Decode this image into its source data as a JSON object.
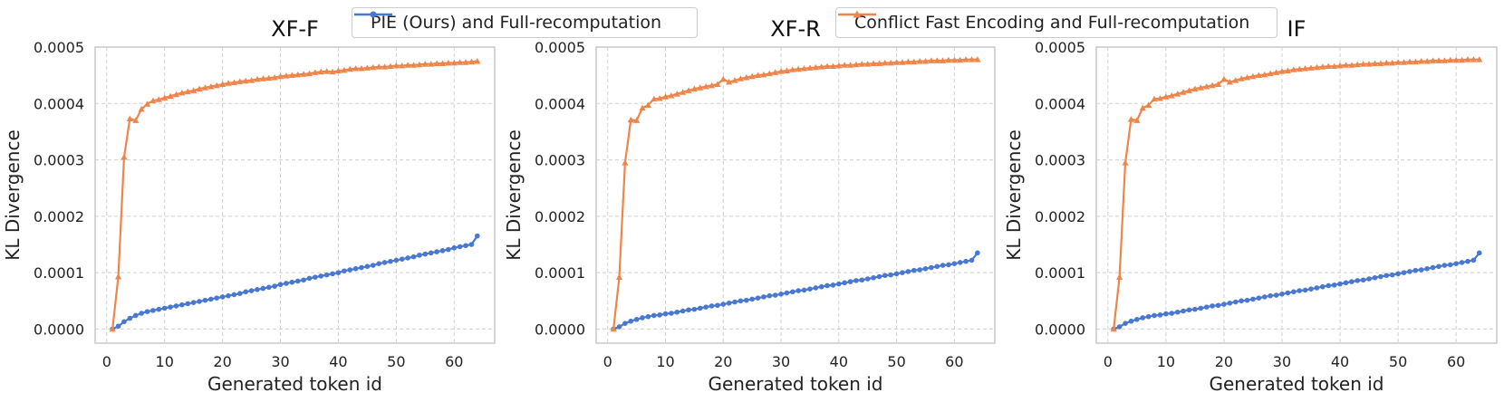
{
  "legend": [
    {
      "label": "PIE (Ours) and Full-recomputation",
      "color": "#4878d0",
      "marker": "circle"
    },
    {
      "label": "Conflict Fast Encoding and Full-recomputation",
      "color": "#ee854a",
      "marker": "triangle"
    }
  ],
  "chart_data": [
    {
      "type": "line",
      "title": "XF-F",
      "xlabel": "Generated token id",
      "ylabel": "KL Divergence",
      "xlim": [
        -2,
        67
      ],
      "ylim": [
        -2.5e-05,
        0.0005
      ],
      "xticks": [
        "0",
        "10",
        "20",
        "30",
        "40",
        "50",
        "60"
      ],
      "yticks": [
        "0.0000",
        "0.0001",
        "0.0002",
        "0.0003",
        "0.0004",
        "0.0005"
      ],
      "grid": true,
      "x_range": [
        1,
        64
      ],
      "series": [
        {
          "name": "PIE (Ours) and Full-recomputation",
          "color": "#4878d0",
          "marker": "circle",
          "values": [
            0,
            5e-06,
            1.3e-05,
            1.9e-05,
            2.4e-05,
            2.8e-05,
            3.1e-05,
            3.3e-05,
            3.5e-05,
            3.7e-05,
            3.9e-05,
            4.1e-05,
            4.3e-05,
            4.5e-05,
            4.7e-05,
            4.9e-05,
            5.1e-05,
            5.3e-05,
            5.5e-05,
            5.7e-05,
            5.9e-05,
            6.1e-05,
            6.3e-05,
            6.6e-05,
            6.8e-05,
            7e-05,
            7.2e-05,
            7.4e-05,
            7.6e-05,
            7.9e-05,
            8.1e-05,
            8.3e-05,
            8.5e-05,
            8.7e-05,
            9e-05,
            9.2e-05,
            9.4e-05,
            9.6e-05,
            9.8e-05,
            0.0001,
            0.000103,
            0.000105,
            0.000107,
            0.000109,
            0.000111,
            0.000113,
            0.000116,
            0.000118,
            0.00012,
            0.000122,
            0.000124,
            0.000126,
            0.000128,
            0.000131,
            0.000133,
            0.000135,
            0.000137,
            0.000139,
            0.000141,
            0.000144,
            0.000146,
            0.000148,
            0.00015,
            0.000165
          ]
        },
        {
          "name": "Conflict Fast Encoding and Full-recomputation",
          "color": "#ee854a",
          "marker": "triangle",
          "values": [
            0,
            9.3e-05,
            0.000305,
            0.000373,
            0.00037,
            0.00039,
            0.000399,
            0.000405,
            0.000407,
            0.00041,
            0.000413,
            0.000416,
            0.000419,
            0.000421,
            0.000423,
            0.000426,
            0.000428,
            0.00043,
            0.000432,
            0.000434,
            0.000436,
            0.000437,
            0.000439,
            0.00044,
            0.000441,
            0.000443,
            0.000444,
            0.000445,
            0.000446,
            0.000448,
            0.000449,
            0.00045,
            0.000451,
            0.000452,
            0.000453,
            0.000455,
            0.000456,
            0.000457,
            0.000456,
            0.000458,
            0.000459,
            0.000461,
            0.000462,
            0.000462,
            0.000463,
            0.000464,
            0.000465,
            0.000465,
            0.000466,
            0.000467,
            0.000467,
            0.000468,
            0.000468,
            0.000469,
            0.00047,
            0.00047,
            0.000471,
            0.000471,
            0.000472,
            0.000472,
            0.000473,
            0.000473,
            0.000474,
            0.000475
          ]
        }
      ]
    },
    {
      "type": "line",
      "title": "XF-R",
      "xlabel": "Generated token id",
      "ylabel": "KL Divergence",
      "xlim": [
        -2,
        67
      ],
      "ylim": [
        -2.5e-05,
        0.0005
      ],
      "xticks": [
        "0",
        "10",
        "20",
        "30",
        "40",
        "50",
        "60"
      ],
      "yticks": [
        "0.0000",
        "0.0001",
        "0.0002",
        "0.0003",
        "0.0004",
        "0.0005"
      ],
      "grid": true,
      "x_range": [
        1,
        64
      ],
      "series": [
        {
          "name": "PIE (Ours) and Full-recomputation",
          "color": "#4878d0",
          "marker": "circle",
          "values": [
            0,
            4e-06,
            1e-05,
            1.4e-05,
            1.7e-05,
            2e-05,
            2.2e-05,
            2.4e-05,
            2.5e-05,
            2.7e-05,
            2.8e-05,
            3e-05,
            3.2e-05,
            3.4e-05,
            3.5e-05,
            3.7e-05,
            3.9e-05,
            4.1e-05,
            4.2e-05,
            4.4e-05,
            4.6e-05,
            4.8e-05,
            5e-05,
            5.1e-05,
            5.3e-05,
            5.5e-05,
            5.7e-05,
            5.9e-05,
            6e-05,
            6.2e-05,
            6.4e-05,
            6.6e-05,
            6.8e-05,
            6.9e-05,
            7.1e-05,
            7.3e-05,
            7.5e-05,
            7.7e-05,
            7.8e-05,
            8e-05,
            8.2e-05,
            8.4e-05,
            8.6e-05,
            8.7e-05,
            8.9e-05,
            9.1e-05,
            9.3e-05,
            9.5e-05,
            9.6e-05,
            9.8e-05,
            0.0001,
            0.000102,
            0.000104,
            0.000105,
            0.000107,
            0.000109,
            0.000111,
            0.000113,
            0.000114,
            0.000116,
            0.000118,
            0.00012,
            0.000122,
            0.000135
          ]
        },
        {
          "name": "Conflict Fast Encoding and Full-recomputation",
          "color": "#ee854a",
          "marker": "triangle",
          "values": [
            0,
            9.2e-05,
            0.000295,
            0.000371,
            0.00037,
            0.000392,
            0.000397,
            0.000408,
            0.000409,
            0.000412,
            0.000414,
            0.000417,
            0.00042,
            0.000423,
            0.000426,
            0.000428,
            0.00043,
            0.000432,
            0.000434,
            0.000443,
            0.000438,
            0.000441,
            0.000444,
            0.000446,
            0.000448,
            0.00045,
            0.000451,
            0.000453,
            0.000455,
            0.000457,
            0.000458,
            0.00046,
            0.000461,
            0.000462,
            0.000463,
            0.000464,
            0.000465,
            0.000466,
            0.000466,
            0.000467,
            0.000468,
            0.000468,
            0.000469,
            0.00047,
            0.00047,
            0.000471,
            0.000471,
            0.000472,
            0.000472,
            0.000473,
            0.000473,
            0.000474,
            0.000474,
            0.000475,
            0.000475,
            0.000476,
            0.000476,
            0.000476,
            0.000477,
            0.000477,
            0.000477,
            0.000478,
            0.000478,
            0.000478
          ]
        }
      ]
    },
    {
      "type": "line",
      "title": "IF",
      "xlabel": "Generated token id",
      "ylabel": "KL Divergence",
      "xlim": [
        -2,
        67
      ],
      "ylim": [
        -2.5e-05,
        0.0005
      ],
      "xticks": [
        "0",
        "10",
        "20",
        "30",
        "40",
        "50",
        "60"
      ],
      "yticks": [
        "0.0000",
        "0.0001",
        "0.0002",
        "0.0003",
        "0.0004",
        "0.0005"
      ],
      "grid": true,
      "x_range": [
        1,
        64
      ],
      "series": [
        {
          "name": "PIE (Ours) and Full-recomputation",
          "color": "#4878d0",
          "marker": "circle",
          "values": [
            0,
            4e-06,
            1e-05,
            1.4e-05,
            1.7e-05,
            2e-05,
            2.2e-05,
            2.4e-05,
            2.5e-05,
            2.7e-05,
            2.8e-05,
            3e-05,
            3.2e-05,
            3.4e-05,
            3.5e-05,
            3.7e-05,
            3.9e-05,
            4.1e-05,
            4.2e-05,
            4.4e-05,
            4.6e-05,
            4.8e-05,
            5e-05,
            5.1e-05,
            5.3e-05,
            5.5e-05,
            5.7e-05,
            5.9e-05,
            6e-05,
            6.2e-05,
            6.4e-05,
            6.6e-05,
            6.8e-05,
            6.9e-05,
            7.1e-05,
            7.3e-05,
            7.5e-05,
            7.7e-05,
            7.8e-05,
            8e-05,
            8.2e-05,
            8.4e-05,
            8.6e-05,
            8.7e-05,
            8.9e-05,
            9.1e-05,
            9.3e-05,
            9.5e-05,
            9.6e-05,
            9.8e-05,
            0.0001,
            0.000102,
            0.000104,
            0.000105,
            0.000107,
            0.000109,
            0.000111,
            0.000113,
            0.000114,
            0.000116,
            0.000118,
            0.00012,
            0.000122,
            0.000135
          ]
        },
        {
          "name": "Conflict Fast Encoding and Full-recomputation",
          "color": "#ee854a",
          "marker": "triangle",
          "values": [
            0,
            9.2e-05,
            0.000295,
            0.000372,
            0.00037,
            0.000392,
            0.000397,
            0.000408,
            0.000409,
            0.000412,
            0.000414,
            0.000417,
            0.00042,
            0.000423,
            0.000426,
            0.000428,
            0.00043,
            0.000432,
            0.000434,
            0.000443,
            0.000438,
            0.000441,
            0.000444,
            0.000446,
            0.000448,
            0.00045,
            0.000451,
            0.000453,
            0.000455,
            0.000457,
            0.000458,
            0.00046,
            0.000461,
            0.000462,
            0.000463,
            0.000464,
            0.000465,
            0.000466,
            0.000466,
            0.000467,
            0.000468,
            0.000468,
            0.000469,
            0.00047,
            0.00047,
            0.000471,
            0.000471,
            0.000472,
            0.000472,
            0.000473,
            0.000473,
            0.000474,
            0.000474,
            0.000475,
            0.000475,
            0.000476,
            0.000476,
            0.000476,
            0.000477,
            0.000477,
            0.000477,
            0.000478,
            0.000478,
            0.000478
          ]
        }
      ]
    }
  ]
}
